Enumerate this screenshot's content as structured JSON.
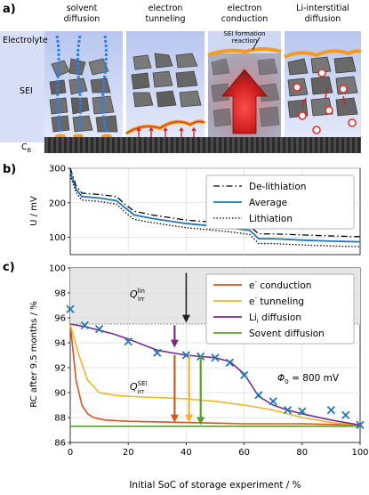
{
  "panel_a": {
    "label": "a)",
    "mechanisms": [
      {
        "title": "solvent\ndiffusion"
      },
      {
        "title": "electron\ntunneling"
      },
      {
        "title": "electron\nconduction",
        "annotation": "SEI formation\nreaction"
      },
      {
        "title": "Li-interstitial\ndiffusion"
      }
    ],
    "side_labels": {
      "electrolyte": "Electrolyte",
      "sei": "SEI",
      "electrode": "C6"
    },
    "colors": {
      "electrolyte": "#c9d4f2",
      "sei_bg": "#8f8f8f",
      "grain": "#6b6b6b",
      "electrode": "#3b3b3b",
      "reaction_layer": "#f39b1c",
      "sei_red": "#e3332b",
      "solvent_blue": "#3b82f6"
    }
  },
  "panel_b": {
    "label": "b)",
    "chart_data": {
      "type": "line",
      "ylabel": "U / mV",
      "xlim": [
        0,
        100
      ],
      "ylim": [
        50,
        300
      ],
      "yticks": [
        100,
        200,
        300
      ],
      "x": [
        0,
        2,
        4,
        10,
        16,
        19,
        22,
        28,
        40,
        55,
        62,
        65,
        70,
        80,
        90,
        100
      ],
      "series": [
        {
          "name": "De-lithiation",
          "style": "dashdot",
          "color": "#000000",
          "values": [
            300,
            250,
            228,
            224,
            218,
            195,
            176,
            165,
            150,
            140,
            132,
            110,
            110,
            107,
            104,
            102
          ]
        },
        {
          "name": "Average",
          "style": "solid",
          "color": "#1f77b4",
          "values": [
            290,
            240,
            218,
            214,
            206,
            185,
            165,
            155,
            140,
            128,
            120,
            96,
            96,
            92,
            89,
            87
          ]
        },
        {
          "name": "Lithiation",
          "style": "dotted",
          "color": "#000000",
          "values": [
            280,
            230,
            208,
            204,
            196,
            172,
            152,
            143,
            128,
            116,
            108,
            82,
            82,
            78,
            75,
            73
          ]
        }
      ],
      "grid": true,
      "legend": "upper-right"
    }
  },
  "panel_c": {
    "label": "c)",
    "chart_data": {
      "type": "line",
      "xlabel": "Initial SoC of storage experiment / %",
      "ylabel": "RC after 9.5 months / %",
      "xlim": [
        0,
        100
      ],
      "ylim": [
        86,
        100
      ],
      "xticks": [
        0,
        20,
        40,
        60,
        80,
        100
      ],
      "yticks": [
        86,
        88,
        90,
        92,
        94,
        96,
        98,
        100
      ],
      "shaded_region": {
        "y_from": 95.5,
        "y_to": 100,
        "color": "#e6e6e6"
      },
      "series": [
        {
          "name": "e⁻ conduction",
          "color": "#d9531e",
          "x": [
            0,
            2,
            4,
            6,
            8,
            12,
            20,
            40,
            60,
            80,
            100
          ],
          "values": [
            95.5,
            91.0,
            89.0,
            88.3,
            88.0,
            87.8,
            87.7,
            87.6,
            87.5,
            87.5,
            87.4
          ]
        },
        {
          "name": "e⁻ tunneling",
          "color": "#f0b429",
          "x": [
            0,
            3,
            6,
            10,
            15,
            20,
            30,
            40,
            50,
            60,
            70,
            80,
            90,
            100
          ],
          "values": [
            95.5,
            93.0,
            91.0,
            90.0,
            89.8,
            89.7,
            89.6,
            89.5,
            89.3,
            89.0,
            88.6,
            88.0,
            87.6,
            87.4
          ]
        },
        {
          "name": "Li_i diffusion",
          "color": "#7b2a8a",
          "x": [
            0,
            5,
            10,
            15,
            20,
            30,
            40,
            50,
            55,
            60,
            65,
            70,
            75,
            80,
            90,
            100
          ],
          "values": [
            95.5,
            95.3,
            95.0,
            94.7,
            94.3,
            93.4,
            93.0,
            92.8,
            92.5,
            91.5,
            89.7,
            89.0,
            88.6,
            88.3,
            87.8,
            87.4
          ]
        },
        {
          "name": "Sovent diffusion",
          "color": "#5aa02c",
          "x": [
            0,
            100
          ],
          "values": [
            87.3,
            87.3
          ]
        }
      ],
      "markers": {
        "symbol": "x",
        "color": "#1f77b4",
        "x": [
          0,
          5,
          10,
          20,
          30,
          40,
          45,
          50,
          55,
          60,
          65,
          70,
          75,
          80,
          90,
          95,
          100
        ],
        "values": [
          96.7,
          95.4,
          95.1,
          94.1,
          93.2,
          93.0,
          92.9,
          92.8,
          92.4,
          91.4,
          89.8,
          89.3,
          88.6,
          88.5,
          88.6,
          88.2,
          87.4
        ]
      },
      "annotations": [
        {
          "text_main": "Q",
          "text_sup": "lin",
          "text_sub": "irr"
        },
        {
          "text_main": "Q",
          "text_sup": "SEI",
          "text_sub": "irr"
        },
        {
          "text": "Φ₀ = 800 mV"
        }
      ],
      "arrow_positions_x": [
        35,
        38,
        40,
        43,
        46
      ],
      "grid": true,
      "legend": "upper-right"
    }
  }
}
